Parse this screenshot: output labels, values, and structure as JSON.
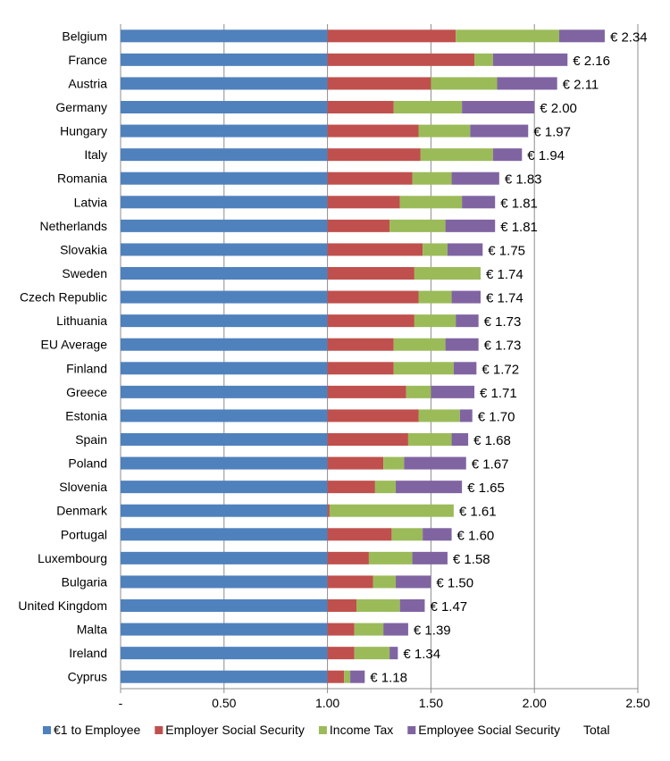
{
  "chart_data": {
    "type": "bar",
    "orientation": "horizontal",
    "stacked": true,
    "categories": [
      "Belgium",
      "France",
      "Austria",
      "Germany",
      "Hungary",
      "Italy",
      "Romania",
      "Latvia",
      "Netherlands",
      "Slovakia",
      "Sweden",
      "Czech Republic",
      "Lithuania",
      "EU Average",
      "Finland",
      "Greece",
      "Estonia",
      "Spain",
      "Poland",
      "Slovenia",
      "Denmark",
      "Portugal",
      "Luxembourg",
      "Bulgaria",
      "United Kingdom",
      "Malta",
      "Ireland",
      "Cyprus"
    ],
    "series": [
      {
        "name": "€1 to Employee",
        "color": "#4F81BD",
        "values": [
          1,
          1,
          1,
          1,
          1,
          1,
          1,
          1,
          1,
          1,
          1,
          1,
          1,
          1,
          1,
          1,
          1,
          1,
          1,
          1,
          1,
          1,
          1,
          1,
          1,
          1,
          1,
          1
        ]
      },
      {
        "name": "Employer Social Security",
        "color": "#C0504D",
        "values": [
          0.62,
          0.71,
          0.5,
          0.32,
          0.44,
          0.45,
          0.41,
          0.35,
          0.3,
          0.46,
          0.42,
          0.44,
          0.42,
          0.32,
          0.32,
          0.38,
          0.44,
          0.39,
          0.27,
          0.23,
          0.01,
          0.31,
          0.2,
          0.22,
          0.14,
          0.13,
          0.13,
          0.08
        ]
      },
      {
        "name": "Income Tax",
        "color": "#9BBB59",
        "values": [
          0.5,
          0.09,
          0.32,
          0.33,
          0.25,
          0.35,
          0.19,
          0.3,
          0.27,
          0.12,
          0.32,
          0.16,
          0.2,
          0.25,
          0.29,
          0.12,
          0.2,
          0.21,
          0.1,
          0.1,
          0.6,
          0.15,
          0.21,
          0.11,
          0.21,
          0.14,
          0.17,
          0.03
        ]
      },
      {
        "name": "Employee Social Security",
        "color": "#8064A2",
        "values": [
          0.22,
          0.36,
          0.29,
          0.35,
          0.28,
          0.14,
          0.23,
          0.16,
          0.24,
          0.17,
          0.0,
          0.14,
          0.11,
          0.16,
          0.11,
          0.21,
          0.06,
          0.08,
          0.3,
          0.32,
          0.0,
          0.14,
          0.17,
          0.17,
          0.12,
          0.12,
          0.04,
          0.07
        ]
      }
    ],
    "totals": [
      "€ 2.34",
      "€ 2.16",
      "€ 2.11",
      "€ 2.00",
      "€ 1.97",
      "€ 1.94",
      "€ 1.83",
      "€ 1.81",
      "€ 1.81",
      "€ 1.75",
      "€ 1.74",
      "€ 1.74",
      "€ 1.73",
      "€ 1.73",
      "€ 1.72",
      "€ 1.71",
      "€ 1.70",
      "€ 1.68",
      "€ 1.67",
      "€ 1.65",
      "€ 1.61",
      "€ 1.60",
      "€ 1.58",
      "€ 1.50",
      "€ 1.47",
      "€ 1.39",
      "€ 1.34",
      "€ 1.18"
    ],
    "total_series_name": "Total",
    "xlim": [
      0,
      2.5
    ],
    "xticks": [
      0,
      0.5,
      1.0,
      1.5,
      2.0,
      2.5
    ],
    "xtick_labels": [
      "-",
      "0.50",
      "1.00",
      "1.50",
      "2.00",
      "2.50"
    ],
    "grid": "vertical",
    "legend": "bottom"
  }
}
